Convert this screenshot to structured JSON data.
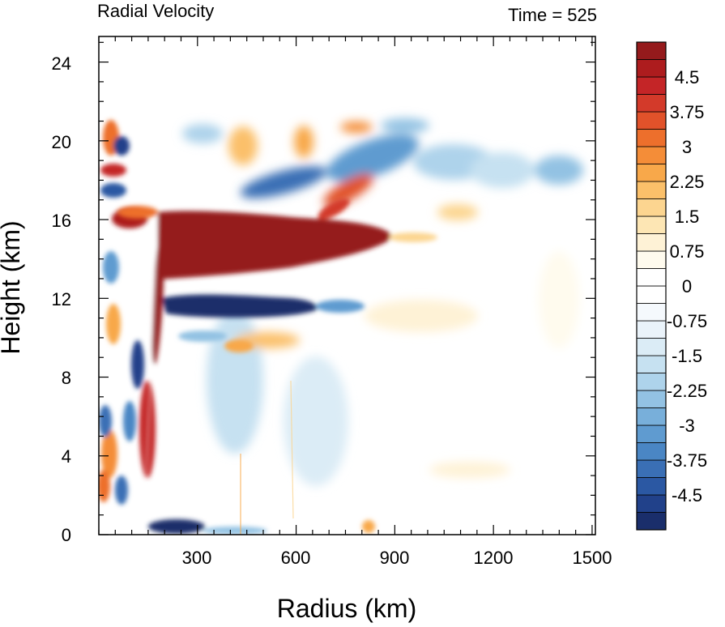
{
  "chart_data": {
    "type": "heatmap",
    "title": "Radial Velocity",
    "time_label": "Time = 525",
    "xlabel": "Radius (km)",
    "ylabel": "Height (km)",
    "xlim": [
      0,
      1510
    ],
    "ylim": [
      0,
      25.3
    ],
    "x_ticks": [
      300,
      600,
      900,
      1200,
      1500
    ],
    "y_ticks": [
      0,
      4,
      8,
      12,
      16,
      20,
      24
    ],
    "colorbar": {
      "min": -5.25,
      "max": 5.25,
      "levels": 28,
      "tick_values": [
        4.5,
        3.75,
        3,
        2.25,
        1.5,
        0.75,
        0,
        -0.75,
        -1.5,
        -2.25,
        -3,
        -3.75,
        -4.5
      ],
      "tick_labels": [
        "4.5",
        "3.75",
        "3",
        "2.25",
        "1.5",
        "0.75",
        "0",
        "-0.75",
        "-1.5",
        "-2.25",
        "-3",
        "-3.75",
        "-4.5"
      ],
      "colors": [
        "#1a2e6b",
        "#21418a",
        "#2b58a3",
        "#3a6fb5",
        "#4a86c4",
        "#5f9bd0",
        "#78afda",
        "#93c2e3",
        "#aed3eb",
        "#c6e1f1",
        "#dbecf6",
        "#eaf3fa",
        "#f5f9fd",
        "#ffffff",
        "#ffffff",
        "#fffbee",
        "#fef2d6",
        "#fde6b4",
        "#fcd590",
        "#fbc06a",
        "#f8a84a",
        "#f48d38",
        "#ed6f2c",
        "#e1522a",
        "#d33a2a",
        "#c42527",
        "#ad1c1e",
        "#951a1c"
      ]
    },
    "features": [
      {
        "name": "upper outflow jet",
        "r": [
          190,
          920
        ],
        "z": [
          12.5,
          16.8
        ],
        "value": 5.2
      },
      {
        "name": "inflow layer below outflow",
        "r": [
          190,
          620
        ],
        "z": [
          10.5,
          12.2
        ],
        "value": -4.8
      },
      {
        "name": "eyewall",
        "r": [
          150,
          190
        ],
        "z": [
          0,
          17
        ],
        "value": "mixed"
      },
      {
        "name": "boundary inflow",
        "r": [
          180,
          260
        ],
        "z": [
          0,
          1
        ],
        "value": -4.2
      },
      {
        "name": "upper wave pattern",
        "r": [
          0,
          1450
        ],
        "z": [
          17,
          21.5
        ],
        "value": "alternating"
      }
    ]
  }
}
